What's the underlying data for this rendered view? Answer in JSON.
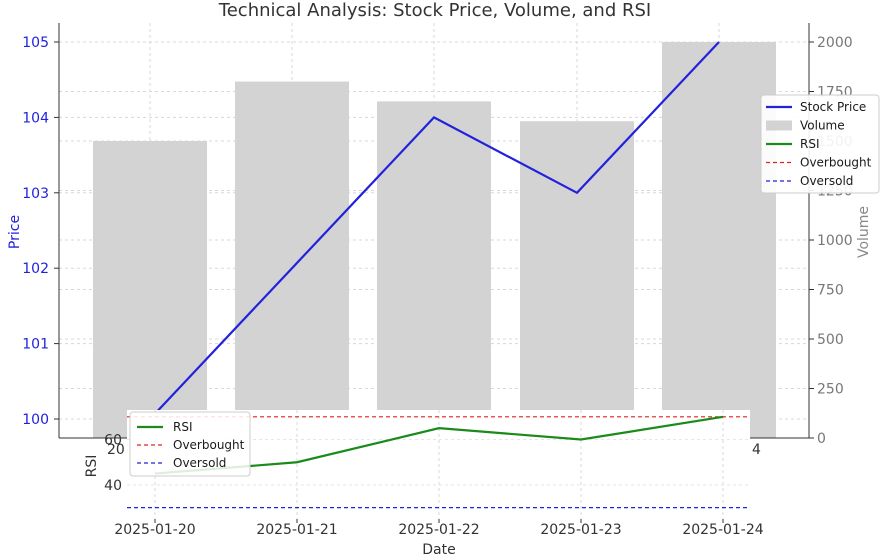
{
  "chart_data": {
    "type": "line",
    "title": "Technical Analysis: Stock Price, Volume, and RSI",
    "xlabel": "Date",
    "categories": [
      "2025-01-20",
      "2025-01-21",
      "2025-01-22",
      "2025-01-23",
      "2025-01-24"
    ],
    "price": {
      "ylabel": "Price",
      "ylim": [
        99.7,
        105.2
      ],
      "ticks": [
        100,
        101,
        102,
        103,
        104,
        105
      ],
      "series": [
        {
          "name": "Stock Price",
          "values": [
            100,
            102,
            104,
            103,
            105
          ],
          "color": "#2222dd"
        }
      ]
    },
    "volume": {
      "ylabel": "Volume",
      "ylim": [
        0,
        2000
      ],
      "ticks": [
        0,
        250,
        500,
        750,
        1000,
        1250,
        1500,
        1750,
        2000
      ],
      "series": [
        {
          "name": "Volume",
          "values": [
            1500,
            1800,
            1700,
            1600,
            2000
          ],
          "color": "#d3d3d3"
        }
      ]
    },
    "rsi": {
      "ylabel": "RSI",
      "ylim": [
        25,
        73
      ],
      "ticks_visible": [
        {
          "label": "40",
          "value": 40
        },
        {
          "label": "60",
          "value": 60
        }
      ],
      "series": [
        {
          "name": "RSI",
          "values": [
            45,
            50,
            65,
            60,
            70
          ],
          "color": "#1a8a1a"
        }
      ],
      "overbought": 70,
      "oversold": 30
    },
    "legend_main": {
      "placement": "right",
      "entries": [
        {
          "label": "Stock Price",
          "kind": "line",
          "color": "#2222dd",
          "dash": false
        },
        {
          "label": "Volume",
          "kind": "patch",
          "color": "#d3d3d3"
        },
        {
          "label": "RSI",
          "kind": "line",
          "color": "#1a8a1a",
          "dash": false
        },
        {
          "label": "Overbought",
          "kind": "line",
          "color": "#e02020",
          "dash": true
        },
        {
          "label": "Oversold",
          "kind": "line",
          "color": "#2222dd",
          "dash": true
        }
      ]
    },
    "legend_rsi": {
      "placement": "upper-left",
      "entries": [
        {
          "label": "RSI",
          "kind": "line",
          "color": "#1a8a1a",
          "dash": false
        },
        {
          "label": "Overbought",
          "kind": "line",
          "color": "#e02020",
          "dash": true
        },
        {
          "label": "Oversold",
          "kind": "line",
          "color": "#2222dd",
          "dash": true
        }
      ]
    },
    "stray_labels": [
      "20",
      "4"
    ],
    "grid": true
  }
}
